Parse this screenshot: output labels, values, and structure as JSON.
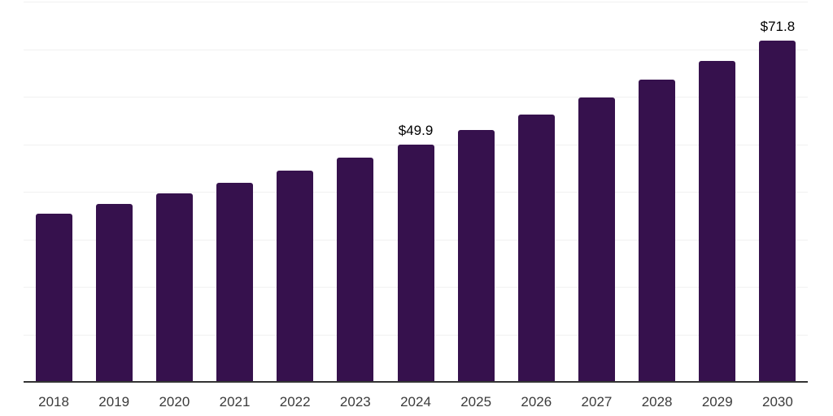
{
  "chart_data": {
    "type": "bar",
    "title": "",
    "xlabel": "",
    "ylabel": "",
    "categories": [
      "2018",
      "2019",
      "2020",
      "2021",
      "2022",
      "2023",
      "2024",
      "2025",
      "2026",
      "2027",
      "2028",
      "2029",
      "2030"
    ],
    "values": [
      35.4,
      37.5,
      39.6,
      41.9,
      44.4,
      47.1,
      49.9,
      53.0,
      56.3,
      59.8,
      63.6,
      67.6,
      71.8
    ],
    "value_prefix": "$",
    "data_labels": [
      {
        "category": "2024",
        "text": "$49.9"
      },
      {
        "category": "2030",
        "text": "$71.8"
      }
    ],
    "ylim": [
      0,
      80
    ],
    "grid_step": 10,
    "grid": true,
    "legend": "none",
    "y_axis_tick_labels": "hidden",
    "colors": {
      "bar": "#36114D",
      "grid": "#f1f1f1",
      "axis_line": "#333333",
      "axis_label": "#3b3b3b",
      "data_label": "#000000"
    }
  }
}
